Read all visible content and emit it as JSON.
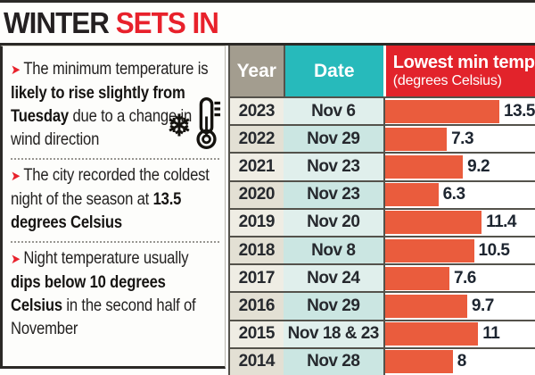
{
  "title": {
    "word_black": "WINTER ",
    "word_red": "SETS IN"
  },
  "bullets": [
    {
      "pre": "The minimum temperature is ",
      "bold": "likely to rise slightly from Tuesday",
      "post": " due to a change in wind direction"
    },
    {
      "pre": "The city recorded the coldest night of the season at ",
      "bold": "13.5 degrees Celsius",
      "post": ""
    },
    {
      "pre": "Night temperature usually ",
      "bold": "dips below 10 degrees Celsius",
      "post": " in the second half of November"
    }
  ],
  "bullet_marker": "➤",
  "icons": {
    "snowflake": "❄",
    "thermometer": "thermometer-icon"
  },
  "table": {
    "headers": {
      "year": "Year",
      "date": "Date",
      "temp_line1": "Lowest min temp",
      "temp_line2": "(degrees Celsius)"
    },
    "rows": [
      {
        "year": "2023",
        "date": "Nov 6",
        "value": 13.5,
        "label": "13.5"
      },
      {
        "year": "2022",
        "date": "Nov 29",
        "value": 7.3,
        "label": "7.3"
      },
      {
        "year": "2021",
        "date": "Nov 23",
        "value": 9.2,
        "label": "9.2"
      },
      {
        "year": "2020",
        "date": "Nov 23",
        "value": 6.3,
        "label": "6.3"
      },
      {
        "year": "2019",
        "date": "Nov 20",
        "value": 11.4,
        "label": "11.4"
      },
      {
        "year": "2018",
        "date": "Nov 8",
        "value": 10.5,
        "label": "10.5"
      },
      {
        "year": "2017",
        "date": "Nov 24",
        "value": 7.6,
        "label": "7.6"
      },
      {
        "year": "2016",
        "date": "Nov 29",
        "value": 9.7,
        "label": "9.7"
      },
      {
        "year": "2015",
        "date": "Nov 18 & 23",
        "value": 11,
        "label": "11"
      },
      {
        "year": "2014",
        "date": "Nov 28",
        "value": 8,
        "label": "8"
      }
    ]
  },
  "colors": {
    "title_red": "#e8212b",
    "header_red": "#e2232b",
    "header_teal": "#27babb",
    "header_taupe": "#a39d8f",
    "bar_orange": "#ea5c3d"
  },
  "chart_data": {
    "type": "bar",
    "orientation": "horizontal",
    "title": "Lowest min temp (degrees Celsius)",
    "categories": [
      "2023",
      "2022",
      "2021",
      "2020",
      "2019",
      "2018",
      "2017",
      "2016",
      "2015",
      "2014"
    ],
    "category_dates": [
      "Nov 6",
      "Nov 29",
      "Nov 23",
      "Nov 23",
      "Nov 20",
      "Nov 8",
      "Nov 24",
      "Nov 29",
      "Nov 18 & 23",
      "Nov 28"
    ],
    "values": [
      13.5,
      7.3,
      9.2,
      6.3,
      11.4,
      10.5,
      7.6,
      9.7,
      11,
      8
    ],
    "xlabel": "",
    "ylabel": "",
    "xlim": [
      0,
      14.5
    ],
    "grid": false,
    "legend": false
  }
}
